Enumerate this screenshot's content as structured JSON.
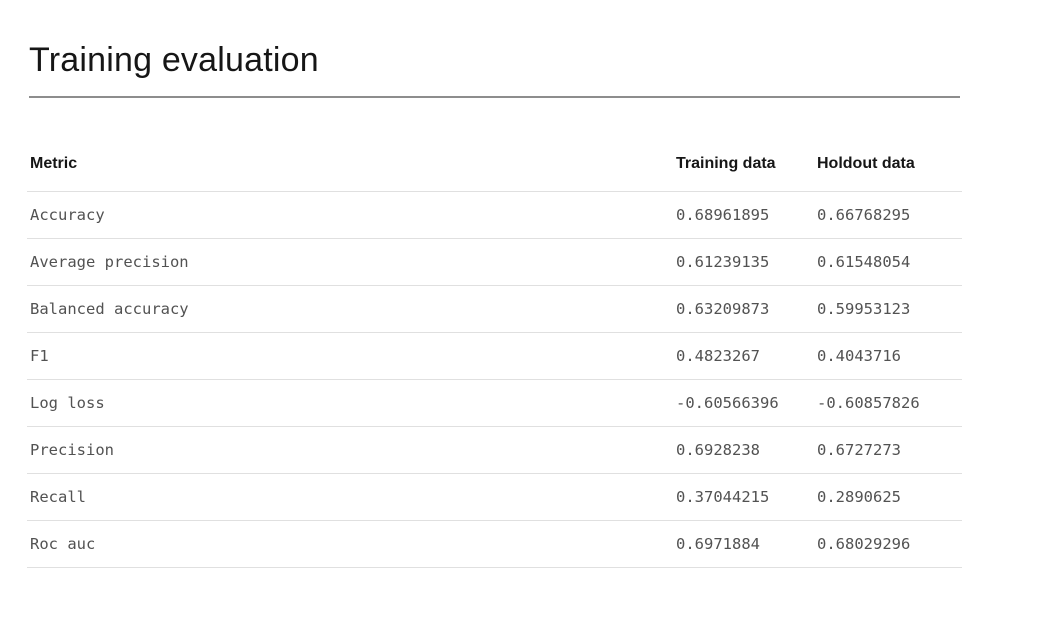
{
  "page": {
    "title": "Training evaluation"
  },
  "table": {
    "headers": {
      "metric": "Metric",
      "training": "Training data",
      "holdout": "Holdout data"
    },
    "rows": [
      {
        "metric": "Accuracy",
        "training": "0.68961895",
        "holdout": "0.66768295"
      },
      {
        "metric": "Average precision",
        "training": "0.61239135",
        "holdout": "0.61548054"
      },
      {
        "metric": "Balanced accuracy",
        "training": "0.63209873",
        "holdout": "0.59953123"
      },
      {
        "metric": "F1",
        "training": "0.4823267",
        "holdout": "0.4043716"
      },
      {
        "metric": "Log loss",
        "training": "-0.60566396",
        "holdout": "-0.60857826"
      },
      {
        "metric": "Precision",
        "training": "0.6928238",
        "holdout": "0.6727273"
      },
      {
        "metric": "Recall",
        "training": "0.37044215",
        "holdout": "0.2890625"
      },
      {
        "metric": "Roc auc",
        "training": "0.6971884",
        "holdout": "0.68029296"
      }
    ]
  },
  "colors": {
    "text_primary": "#161616",
    "text_secondary": "#525252",
    "title_rule": "#8d8d8d",
    "row_divider": "#e0e0e0",
    "background": "#ffffff"
  }
}
